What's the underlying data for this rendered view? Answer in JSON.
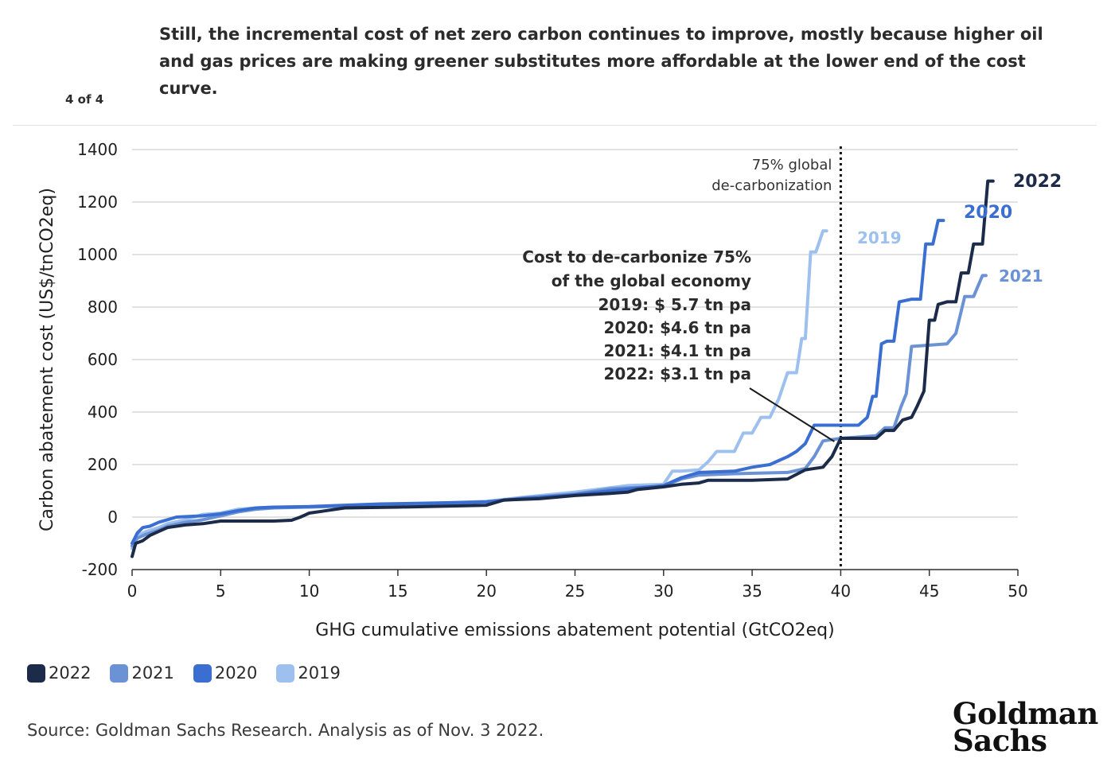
{
  "header": {
    "title": "Still, the incremental cost of net zero carbon continues to improve, mostly because higher oil and gas prices are making greener substitutes more affordable at the lower end of the cost curve.",
    "page_indicator": "4 of 4"
  },
  "footer": {
    "source": "Source: Goldman Sachs Research. Analysis as of Nov. 3 2022.",
    "logo_line1": "Goldman",
    "logo_line2": "Sachs"
  },
  "colors": {
    "2022": "#1c2b4a",
    "2021": "#6b92d4",
    "2020": "#3a6fd1",
    "2019": "#9dc0ee",
    "grid": "#d9d9d9",
    "axis_text": "#1f1f1f"
  },
  "chart_data": {
    "type": "line",
    "xlabel": "GHG cumulative emissions abatement potential (GtCO2eq)",
    "ylabel": "Carbon abatement cost (US$/tnCO2eq)",
    "xlim": [
      0,
      50
    ],
    "ylim": [
      -200,
      1400
    ],
    "xticks": [
      0,
      5,
      10,
      15,
      20,
      25,
      30,
      35,
      40,
      45,
      50
    ],
    "yticks": [
      -200,
      0,
      200,
      400,
      600,
      800,
      1000,
      1200,
      1400
    ],
    "grid": "horizontal",
    "legend": "bottom-left",
    "vline": {
      "x": 40,
      "label_line1": "75% global",
      "label_line2": "de-carbonization"
    },
    "annotation": {
      "lines": [
        "Cost to de-carbonize 75%",
        "of the global economy",
        "2019: $ 5.7 tn pa",
        "2020: $4.6 tn pa",
        "2021: $4.1 tn pa",
        "2022: $3.1 tn pa"
      ],
      "point": [
        40,
        300
      ]
    },
    "series": [
      {
        "name": "2019",
        "points": [
          [
            0,
            -120
          ],
          [
            0.3,
            -70
          ],
          [
            0.8,
            -55
          ],
          [
            1.5,
            -40
          ],
          [
            2,
            -25
          ],
          [
            3,
            -10
          ],
          [
            4,
            10
          ],
          [
            5,
            15
          ],
          [
            6,
            30
          ],
          [
            7,
            35
          ],
          [
            8,
            38
          ],
          [
            10,
            38
          ],
          [
            11,
            42
          ],
          [
            13,
            45
          ],
          [
            15,
            50
          ],
          [
            17,
            52
          ],
          [
            20,
            60
          ],
          [
            22,
            75
          ],
          [
            25,
            95
          ],
          [
            28,
            120
          ],
          [
            30,
            125
          ],
          [
            30.5,
            175
          ],
          [
            31,
            175
          ],
          [
            32,
            180
          ],
          [
            32.5,
            210
          ],
          [
            33,
            250
          ],
          [
            34,
            250
          ],
          [
            34.5,
            320
          ],
          [
            35,
            320
          ],
          [
            35.5,
            380
          ],
          [
            36,
            380
          ],
          [
            36.5,
            450
          ],
          [
            37,
            550
          ],
          [
            37.5,
            550
          ],
          [
            37.8,
            680
          ],
          [
            38,
            680
          ],
          [
            38.3,
            1010
          ],
          [
            38.6,
            1010
          ],
          [
            39,
            1090
          ],
          [
            39.2,
            1090
          ]
        ]
      },
      {
        "name": "2020",
        "points": [
          [
            0,
            -100
          ],
          [
            0.3,
            -60
          ],
          [
            0.6,
            -40
          ],
          [
            1,
            -35
          ],
          [
            1.5,
            -20
          ],
          [
            2,
            -10
          ],
          [
            2.5,
            0
          ],
          [
            4,
            5
          ],
          [
            5,
            12
          ],
          [
            6,
            25
          ],
          [
            7,
            35
          ],
          [
            8,
            38
          ],
          [
            10,
            40
          ],
          [
            12,
            45
          ],
          [
            14,
            50
          ],
          [
            16,
            52
          ],
          [
            18,
            55
          ],
          [
            20,
            58
          ],
          [
            22,
            70
          ],
          [
            25,
            85
          ],
          [
            27,
            100
          ],
          [
            30,
            120
          ],
          [
            31,
            150
          ],
          [
            32,
            170
          ],
          [
            34,
            175
          ],
          [
            35,
            190
          ],
          [
            36,
            200
          ],
          [
            36.5,
            215
          ],
          [
            37,
            230
          ],
          [
            37.5,
            250
          ],
          [
            38,
            280
          ],
          [
            38.5,
            350
          ],
          [
            39,
            350
          ],
          [
            41,
            350
          ],
          [
            41.5,
            380
          ],
          [
            41.8,
            460
          ],
          [
            42,
            460
          ],
          [
            42.3,
            660
          ],
          [
            42.6,
            670
          ],
          [
            43,
            670
          ],
          [
            43.3,
            820
          ],
          [
            44,
            830
          ],
          [
            44.5,
            830
          ],
          [
            44.8,
            1040
          ],
          [
            45.2,
            1040
          ],
          [
            45.5,
            1130
          ],
          [
            45.8,
            1130
          ]
        ]
      },
      {
        "name": "2021",
        "points": [
          [
            0,
            -110
          ],
          [
            0.3,
            -80
          ],
          [
            0.8,
            -65
          ],
          [
            1.5,
            -50
          ],
          [
            2,
            -35
          ],
          [
            3,
            -20
          ],
          [
            4,
            -10
          ],
          [
            5,
            5
          ],
          [
            6,
            20
          ],
          [
            7,
            30
          ],
          [
            8,
            35
          ],
          [
            10,
            38
          ],
          [
            12,
            42
          ],
          [
            14,
            45
          ],
          [
            16,
            50
          ],
          [
            18,
            52
          ],
          [
            20,
            58
          ],
          [
            22,
            72
          ],
          [
            25,
            88
          ],
          [
            27,
            108
          ],
          [
            30,
            118
          ],
          [
            31,
            145
          ],
          [
            32,
            160
          ],
          [
            34,
            165
          ],
          [
            37,
            170
          ],
          [
            38,
            185
          ],
          [
            38.5,
            230
          ],
          [
            39,
            290
          ],
          [
            40,
            300
          ],
          [
            42,
            310
          ],
          [
            42.5,
            340
          ],
          [
            43,
            340
          ],
          [
            43.4,
            420
          ],
          [
            43.7,
            470
          ],
          [
            44,
            650
          ],
          [
            46,
            660
          ],
          [
            46.5,
            700
          ],
          [
            47,
            840
          ],
          [
            47.5,
            840
          ],
          [
            48,
            920
          ],
          [
            48.2,
            920
          ]
        ]
      },
      {
        "name": "2022",
        "points": [
          [
            0,
            -150
          ],
          [
            0.2,
            -100
          ],
          [
            0.6,
            -90
          ],
          [
            1,
            -70
          ],
          [
            1.5,
            -55
          ],
          [
            2,
            -40
          ],
          [
            3,
            -30
          ],
          [
            4,
            -25
          ],
          [
            5,
            -15
          ],
          [
            8,
            -15
          ],
          [
            9,
            -12
          ],
          [
            9.5,
            0
          ],
          [
            10,
            15
          ],
          [
            11,
            25
          ],
          [
            12,
            35
          ],
          [
            15,
            38
          ],
          [
            18,
            42
          ],
          [
            20,
            45
          ],
          [
            21,
            65
          ],
          [
            23,
            70
          ],
          [
            25,
            82
          ],
          [
            27,
            90
          ],
          [
            28,
            95
          ],
          [
            28.5,
            105
          ],
          [
            30,
            115
          ],
          [
            31,
            125
          ],
          [
            32,
            130
          ],
          [
            32.5,
            140
          ],
          [
            35,
            140
          ],
          [
            37,
            145
          ],
          [
            38,
            180
          ],
          [
            39,
            190
          ],
          [
            39.5,
            230
          ],
          [
            40,
            300
          ],
          [
            42,
            300
          ],
          [
            42.5,
            330
          ],
          [
            43,
            330
          ],
          [
            43.5,
            370
          ],
          [
            44,
            380
          ],
          [
            44.3,
            420
          ],
          [
            44.7,
            480
          ],
          [
            45,
            750
          ],
          [
            45.3,
            750
          ],
          [
            45.5,
            810
          ],
          [
            46,
            820
          ],
          [
            46.5,
            820
          ],
          [
            46.8,
            930
          ],
          [
            47.2,
            930
          ],
          [
            47.5,
            1040
          ],
          [
            48,
            1040
          ],
          [
            48.3,
            1280
          ],
          [
            48.6,
            1280
          ]
        ]
      }
    ],
    "end_labels": [
      {
        "name": "2022",
        "text": "2022"
      },
      {
        "name": "2020",
        "text": "2020"
      },
      {
        "name": "2019",
        "text": "2019"
      },
      {
        "name": "2021",
        "text": "2021"
      }
    ],
    "legend_entries": [
      "2022",
      "2021",
      "2020",
      "2019"
    ]
  }
}
